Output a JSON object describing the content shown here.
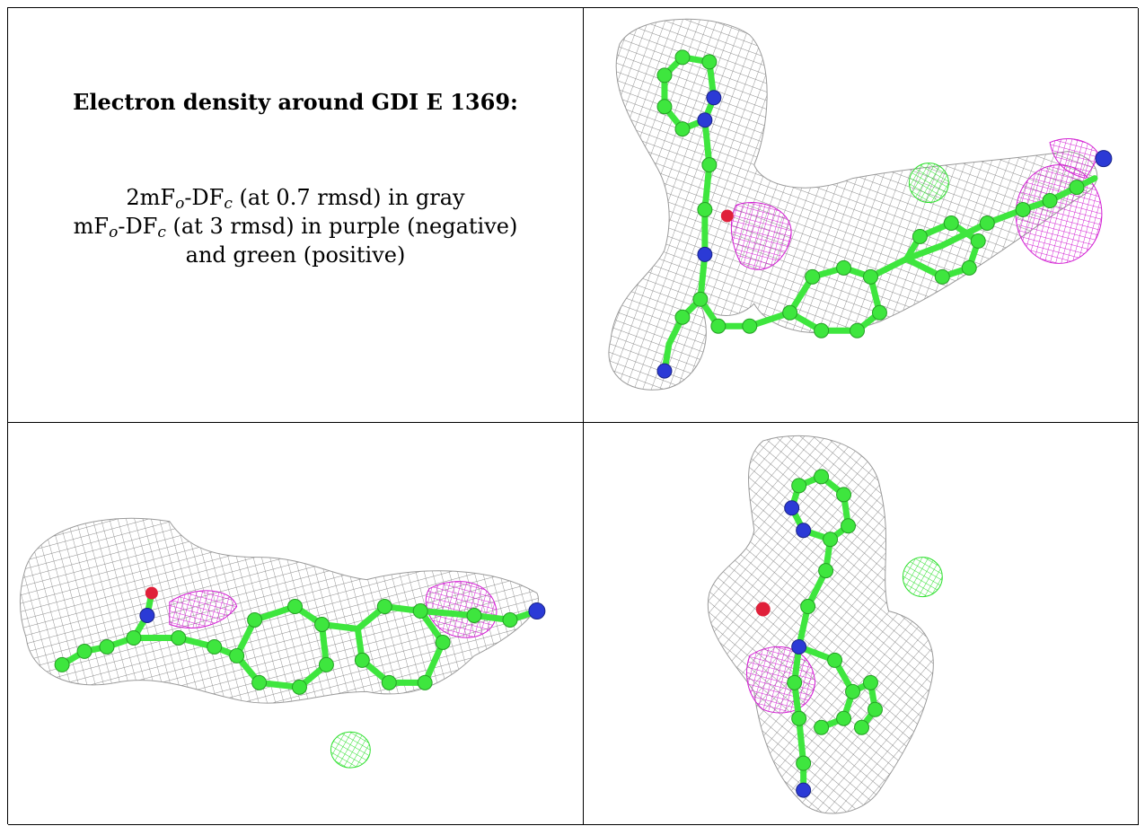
{
  "panel_text": {
    "title": "Electron density around GDI E 1369:",
    "line1": {
      "a": "2mF",
      "b": "o",
      "c": "-DF",
      "d": "c",
      "e": " (at 0.7 rmsd) in gray"
    },
    "line2": {
      "a": "mF",
      "b": "o",
      "c": "-DF",
      "d": "c",
      "e": " (at 3 rmsd) in purple (negative)"
    },
    "line3": "and green (positive)"
  },
  "colors": {
    "mesh_2fofc": "#8a8a8a",
    "mesh_negative": "#d21ed2",
    "mesh_positive": "#2fe02f",
    "carbon_atom": "#3ee63e",
    "nitrogen_atom": "#2b3ad6",
    "oxygen_atom": "#e0203a"
  }
}
